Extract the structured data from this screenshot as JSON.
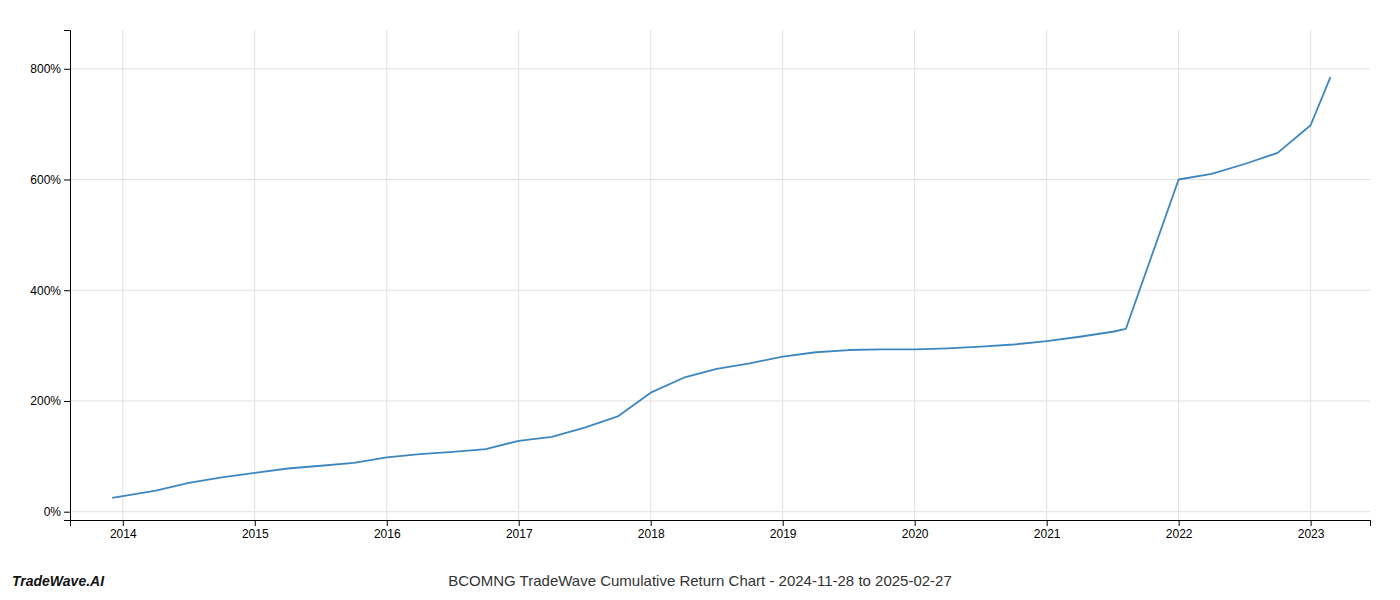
{
  "chart_data": {
    "type": "line",
    "title": "BCOMNG TradeWave Cumulative Return Chart - 2024-11-28 to 2025-02-27",
    "x": [
      2013.92,
      2014.0,
      2014.25,
      2014.5,
      2014.75,
      2015.0,
      2015.25,
      2015.5,
      2015.75,
      2016.0,
      2016.25,
      2016.5,
      2016.75,
      2017.0,
      2017.25,
      2017.5,
      2017.75,
      2018.0,
      2018.25,
      2018.5,
      2018.75,
      2019.0,
      2019.25,
      2019.5,
      2019.75,
      2020.0,
      2020.25,
      2020.5,
      2020.75,
      2021.0,
      2021.25,
      2021.5,
      2021.6,
      2022.0,
      2022.25,
      2022.5,
      2022.75,
      2023.0,
      2023.15
    ],
    "values": [
      25,
      28,
      38,
      52,
      62,
      70,
      78,
      83,
      88,
      98,
      104,
      108,
      113,
      128,
      135,
      152,
      172,
      215,
      242,
      258,
      268,
      280,
      288,
      292,
      293,
      293,
      295,
      298,
      302,
      308,
      316,
      325,
      330,
      600,
      610,
      628,
      648,
      698,
      785
    ],
    "color": "#3d87c0",
    "xlim": [
      2013.6,
      2023.45
    ],
    "ylim": [
      -15,
      870
    ],
    "xticks": [
      2014,
      2015,
      2016,
      2017,
      2018,
      2019,
      2020,
      2021,
      2022,
      2023
    ],
    "yticks": [
      {
        "value": 0,
        "label": "0%"
      },
      {
        "value": 200,
        "label": "200%"
      },
      {
        "value": 400,
        "label": "400%"
      },
      {
        "value": 600,
        "label": "600%"
      },
      {
        "value": 800,
        "label": "800%"
      }
    ],
    "grid": true,
    "annotations": [
      "TradeWave.AI"
    ]
  }
}
